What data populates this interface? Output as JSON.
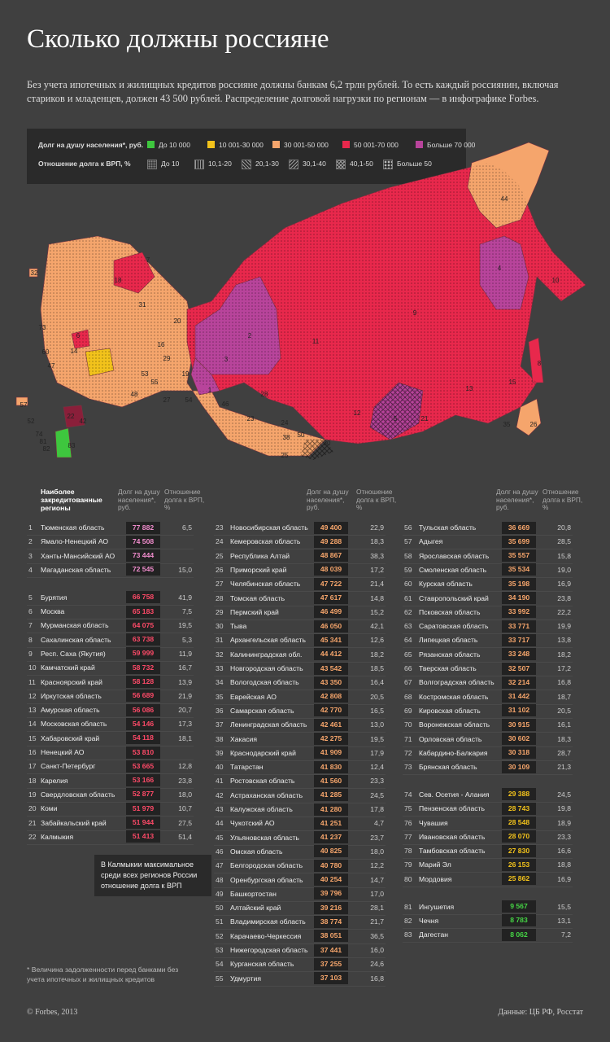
{
  "header": {
    "title": "Сколько должны россияне",
    "intro": "Без учета ипотечных и жилищных кредитов россияне должны банкам 6,2 трлн рублей. То есть каждый россиянин, включая стариков и младенцев, должен 43 500 рублей. Распределение долговой нагрузки по регионам — в инфографике Forbes."
  },
  "legend": {
    "debt_label": "Долг на душу населения*, руб.",
    "debt_items": [
      {
        "label": "До 10 000",
        "color": "#3ec63e"
      },
      {
        "label": "10 001-30 000",
        "color": "#f2c21b"
      },
      {
        "label": "30 001-50 000",
        "color": "#f5a56c"
      },
      {
        "label": "50 001-70 000",
        "color": "#e8284c"
      },
      {
        "label": "Больше 70 000",
        "color": "#b8449b"
      }
    ],
    "ratio_label": "Отношение долга к ВРП, %",
    "ratio_items": [
      "До 10",
      "10,1-20",
      "20,1-30",
      "30,1-40",
      "40,1-50",
      "Больше 50"
    ]
  },
  "map": {
    "labels": [
      "44",
      "7",
      "18",
      "10",
      "4",
      "9",
      "11",
      "2",
      "3",
      "20",
      "31",
      "1",
      "19",
      "8",
      "15",
      "13",
      "12",
      "5",
      "21",
      "35",
      "26",
      "30",
      "28",
      "46",
      "23",
      "24",
      "50",
      "22",
      "42",
      "83",
      "32",
      "73",
      "60",
      "47",
      "57",
      "52",
      "74",
      "81",
      "82",
      "6",
      "14",
      "29",
      "27",
      "54",
      "48",
      "53",
      "55",
      "38",
      "25",
      "16"
    ]
  },
  "table": {
    "header": {
      "regions": "Наиболее закредитованные регионы",
      "debt": "Долг на душу населения*, руб.",
      "ratio": "Отношение долга к ВРП, %"
    },
    "columns": [
      {
        "groups": [
          {
            "color": "#f08ccc",
            "rows": [
              [
                1,
                "Тюменская область",
                "77 882",
                "6,5"
              ],
              [
                2,
                "Ямало-Ненецкий АО",
                "74 508"
              ],
              [
                3,
                "Ханты-Мансийский АО",
                "73 444"
              ],
              [
                4,
                "Магаданская область",
                "72 545",
                "15,0"
              ]
            ]
          },
          {
            "color": "#ff4a68",
            "rows": [
              [
                5,
                "Бурятия",
                "66 758",
                "41,9"
              ],
              [
                6,
                "Москва",
                "65 183",
                "7,5"
              ],
              [
                7,
                "Мурманская область",
                "64 075",
                "19,5"
              ],
              [
                8,
                "Сахалинская область",
                "63 738",
                "5,3"
              ],
              [
                9,
                "Респ. Саха (Якутия)",
                "59 999",
                "11,9"
              ],
              [
                10,
                "Камчатский край",
                "58 732",
                "16,7"
              ],
              [
                11,
                "Красноярский край",
                "58 128",
                "13,9"
              ],
              [
                12,
                "Иркутская область",
                "56 689",
                "21,9"
              ],
              [
                13,
                "Амурская область",
                "56 086",
                "20,7"
              ],
              [
                14,
                "Московская область",
                "54 146",
                "17,3"
              ],
              [
                15,
                "Хабаровский край",
                "54 118",
                "18,1"
              ],
              [
                16,
                "Ненецкий АО",
                "53 810"
              ],
              [
                17,
                "Санкт-Петербург",
                "53 665",
                "12,8"
              ],
              [
                18,
                "Карелия",
                "53 166",
                "23,8"
              ],
              [
                19,
                "Свердловская область",
                "52 877",
                "18,0"
              ],
              [
                20,
                "Коми",
                "51 979",
                "10,7"
              ],
              [
                21,
                "Забайкальский край",
                "51 944",
                "27,5"
              ],
              [
                22,
                "Калмыкия",
                "51 413",
                "51,4"
              ]
            ]
          }
        ]
      },
      {
        "groups": [
          {
            "color": "#f7a66c",
            "rows": [
              [
                23,
                "Новосибирская область",
                "49 400",
                "22,9"
              ],
              [
                24,
                "Кемеровская область",
                "49 288",
                "18,3"
              ],
              [
                25,
                "Республика Алтай",
                "48 867",
                "38,3"
              ],
              [
                26,
                "Приморский край",
                "48 039",
                "17,2"
              ],
              [
                27,
                "Челябинская область",
                "47 722",
                "21,4"
              ],
              [
                28,
                "Томская область",
                "47 617",
                "14,8"
              ],
              [
                29,
                "Пермский край",
                "46 499",
                "15,2"
              ],
              [
                30,
                "Тыва",
                "46 050",
                "42,1"
              ],
              [
                31,
                "Архангельская область",
                "45 341",
                "12,6"
              ],
              [
                32,
                "Калининградская обл.",
                "44 412",
                "18,2"
              ],
              [
                33,
                "Новгородская область",
                "43 542",
                "18,5"
              ],
              [
                34,
                "Вологодская область",
                "43 350",
                "16,4"
              ],
              [
                35,
                "Еврейская АО",
                "42 808",
                "20,5"
              ],
              [
                36,
                "Самарская область",
                "42 770",
                "16,5"
              ],
              [
                37,
                "Ленинградская область",
                "42 461",
                "13,0"
              ],
              [
                38,
                "Хакасия",
                "42 275",
                "19,5"
              ],
              [
                39,
                "Краснодарский край",
                "41 909",
                "17,9"
              ],
              [
                40,
                "Татарстан",
                "41 830",
                "12,4"
              ],
              [
                41,
                "Ростовская область",
                "41 560",
                "23,3"
              ],
              [
                42,
                "Астраханская область",
                "41 285",
                "24,5"
              ],
              [
                43,
                "Калужская область",
                "41 280",
                "17,8"
              ],
              [
                44,
                "Чукотский АО",
                "41 251",
                "4,7"
              ],
              [
                45,
                "Ульяновская область",
                "41 237",
                "23,7"
              ],
              [
                46,
                "Омская область",
                "40 825",
                "18,0"
              ],
              [
                47,
                "Белгородская область",
                "40 780",
                "12,2"
              ],
              [
                48,
                "Оренбургская область",
                "40 254",
                "14,7"
              ],
              [
                49,
                "Башкортостан",
                "39 796",
                "17,0"
              ],
              [
                50,
                "Алтайский край",
                "39 216",
                "28,1"
              ],
              [
                51,
                "Владимирская область",
                "38 774",
                "21,7"
              ],
              [
                52,
                "Карачаево-Черкессия",
                "38 051",
                "36,5"
              ],
              [
                53,
                "Нижегородская область",
                "37 441",
                "16,0"
              ],
              [
                54,
                "Курганская область",
                "37 255",
                "24,6"
              ],
              [
                55,
                "Удмуртия",
                "37 103",
                "16,8"
              ]
            ]
          }
        ]
      },
      {
        "groups": [
          {
            "color": "#f7a66c",
            "rows": [
              [
                56,
                "Тульская область",
                "36 669",
                "20,8"
              ],
              [
                57,
                "Адыгея",
                "35 699",
                "28,5"
              ],
              [
                58,
                "Ярославская область",
                "35 557",
                "15,8"
              ],
              [
                59,
                "Смоленская область",
                "35 534",
                "19,0"
              ],
              [
                60,
                "Курская область",
                "35 198",
                "16,9"
              ],
              [
                61,
                "Ставропольский край",
                "34 190",
                "23,8"
              ],
              [
                62,
                "Псковская область",
                "33 992",
                "22,2"
              ],
              [
                63,
                "Саратовская область",
                "33 771",
                "19,9"
              ],
              [
                64,
                "Липецкая область",
                "33 717",
                "13,8"
              ],
              [
                65,
                "Рязанская область",
                "33 248",
                "18,2"
              ],
              [
                66,
                "Тверская область",
                "32 507",
                "17,2"
              ],
              [
                67,
                "Волгоградская область",
                "32 214",
                "16,8"
              ],
              [
                68,
                "Костромская область",
                "31 442",
                "18,7"
              ],
              [
                69,
                "Кировская область",
                "31 102",
                "20,5"
              ],
              [
                70,
                "Воронежская область",
                "30 915",
                "16,1"
              ],
              [
                71,
                "Орловская область",
                "30 602",
                "18,3"
              ],
              [
                72,
                "Кабардино-Балкария",
                "30 318",
                "28,7"
              ],
              [
                73,
                "Брянская область",
                "30 109",
                "21,3"
              ]
            ]
          },
          {
            "color": "#f2c21b",
            "rows": [
              [
                74,
                "Сев. Осетия - Алания",
                "29 388",
                "24,5"
              ],
              [
                75,
                "Пензенская область",
                "28 743",
                "19,8"
              ],
              [
                76,
                "Чувашия",
                "28 548",
                "18,9"
              ],
              [
                77,
                "Ивановская область",
                "28 070",
                "23,3"
              ],
              [
                78,
                "Тамбовская область",
                "27 830",
                "16,6"
              ],
              [
                79,
                "Марий Эл",
                "26 153",
                "18,8"
              ],
              [
                80,
                "Мордовия",
                "25 862",
                "16,9"
              ]
            ]
          },
          {
            "color": "#45d645",
            "rows": [
              [
                81,
                "Ингушетия",
                "9 567",
                "15,5"
              ],
              [
                82,
                "Чечня",
                "8 783",
                "13,1"
              ],
              [
                83,
                "Дагестан",
                "8 062",
                "7,2"
              ]
            ]
          }
        ]
      }
    ]
  },
  "callout": "В Калмыкии максимальное среди всех регионов России отношение долга к ВРП",
  "footnote": "* Величина задолженности перед банками без учета ипотечных и жилищных кредитов",
  "footer": {
    "copyright": "© Forbes, 2013",
    "source": "Данные: ЦБ РФ, Росстат"
  }
}
